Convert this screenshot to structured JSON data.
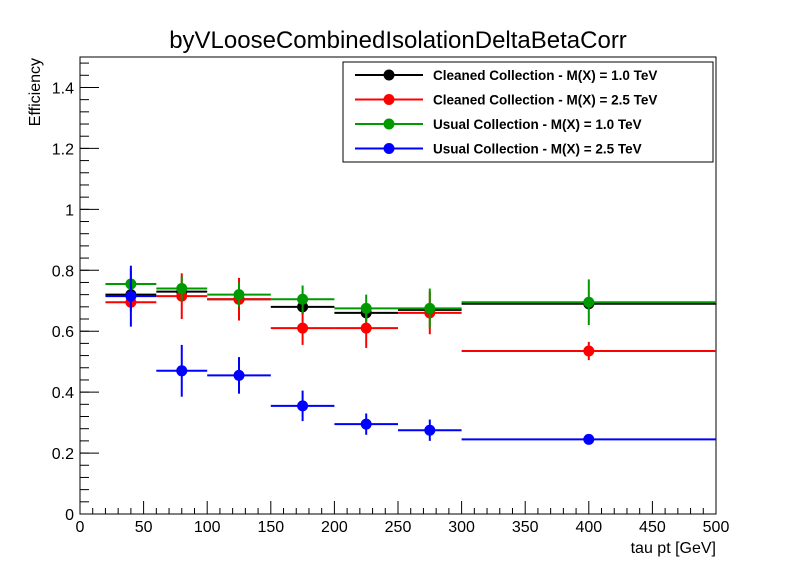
{
  "chart_data": {
    "type": "scatter",
    "title": "byVLooseCombinedIsolationDeltaBetaCorr",
    "xlabel": "tau pt [GeV]",
    "ylabel": "Efficiency",
    "xlim": [
      0,
      500
    ],
    "ylim": [
      0,
      1.5
    ],
    "x_ticks": [
      0,
      50,
      100,
      150,
      200,
      250,
      300,
      350,
      400,
      450,
      500
    ],
    "y_ticks": [
      0,
      0.2,
      0.4,
      0.6,
      0.8,
      1,
      1.2,
      1.4
    ],
    "x_tick_labels": [
      "0",
      "50",
      "100",
      "150",
      "200",
      "250",
      "300",
      "350",
      "400",
      "450",
      "500"
    ],
    "y_tick_labels": [
      "0",
      "0.2",
      "0.4",
      "0.6",
      "0.8",
      "1",
      "1.2",
      "1.4"
    ],
    "grid": false,
    "legend_position": "top-right",
    "series": [
      {
        "name": "Cleaned Collection - M(X) = 1.0 TeV",
        "color": "#000000",
        "points": [
          {
            "x": 40,
            "xlo": 20,
            "xhi": 60,
            "y": 0.72,
            "ylo": 0.69,
            "yhi": 0.75
          },
          {
            "x": 80,
            "xlo": 60,
            "xhi": 100,
            "y": 0.73,
            "ylo": 0.71,
            "yhi": 0.75
          },
          {
            "x": 125,
            "xlo": 100,
            "xhi": 150,
            "y": 0.705,
            "ylo": 0.685,
            "yhi": 0.725
          },
          {
            "x": 175,
            "xlo": 150,
            "xhi": 200,
            "y": 0.68,
            "ylo": 0.655,
            "yhi": 0.705
          },
          {
            "x": 225,
            "xlo": 200,
            "xhi": 250,
            "y": 0.66,
            "ylo": 0.64,
            "yhi": 0.68
          },
          {
            "x": 275,
            "xlo": 250,
            "xhi": 300,
            "y": 0.67,
            "ylo": 0.65,
            "yhi": 0.69
          },
          {
            "x": 400,
            "xlo": 300,
            "xhi": 500,
            "y": 0.69,
            "ylo": 0.67,
            "yhi": 0.71
          }
        ]
      },
      {
        "name": "Cleaned Collection - M(X) = 2.5 TeV",
        "color": "#ff0000",
        "points": [
          {
            "x": 40,
            "xlo": 20,
            "xhi": 60,
            "y": 0.695,
            "ylo": 0.665,
            "yhi": 0.725
          },
          {
            "x": 80,
            "xlo": 60,
            "xhi": 100,
            "y": 0.715,
            "ylo": 0.64,
            "yhi": 0.79
          },
          {
            "x": 125,
            "xlo": 100,
            "xhi": 150,
            "y": 0.705,
            "ylo": 0.635,
            "yhi": 0.775
          },
          {
            "x": 175,
            "xlo": 150,
            "xhi": 200,
            "y": 0.61,
            "ylo": 0.555,
            "yhi": 0.665
          },
          {
            "x": 225,
            "xlo": 200,
            "xhi": 250,
            "y": 0.61,
            "ylo": 0.545,
            "yhi": 0.675
          },
          {
            "x": 275,
            "xlo": 250,
            "xhi": 300,
            "y": 0.66,
            "ylo": 0.59,
            "yhi": 0.73
          },
          {
            "x": 400,
            "xlo": 300,
            "xhi": 500,
            "y": 0.535,
            "ylo": 0.505,
            "yhi": 0.565
          }
        ]
      },
      {
        "name": "Usual Collection - M(X) = 1.0 TeV",
        "color": "#009900",
        "points": [
          {
            "x": 40,
            "xlo": 20,
            "xhi": 60,
            "y": 0.755,
            "ylo": 0.705,
            "yhi": 0.805
          },
          {
            "x": 80,
            "xlo": 60,
            "xhi": 100,
            "y": 0.74,
            "ylo": 0.7,
            "yhi": 0.78
          },
          {
            "x": 125,
            "xlo": 100,
            "xhi": 150,
            "y": 0.72,
            "ylo": 0.68,
            "yhi": 0.76
          },
          {
            "x": 175,
            "xlo": 150,
            "xhi": 200,
            "y": 0.705,
            "ylo": 0.66,
            "yhi": 0.75
          },
          {
            "x": 225,
            "xlo": 200,
            "xhi": 250,
            "y": 0.675,
            "ylo": 0.63,
            "yhi": 0.72
          },
          {
            "x": 275,
            "xlo": 250,
            "xhi": 300,
            "y": 0.675,
            "ylo": 0.61,
            "yhi": 0.74
          },
          {
            "x": 400,
            "xlo": 300,
            "xhi": 500,
            "y": 0.695,
            "ylo": 0.62,
            "yhi": 0.77
          }
        ]
      },
      {
        "name": "Usual Collection - M(X) = 2.5 TeV",
        "color": "#0000ff",
        "points": [
          {
            "x": 40,
            "xlo": 20,
            "xhi": 60,
            "y": 0.715,
            "ylo": 0.615,
            "yhi": 0.815
          },
          {
            "x": 80,
            "xlo": 60,
            "xhi": 100,
            "y": 0.47,
            "ylo": 0.385,
            "yhi": 0.555
          },
          {
            "x": 125,
            "xlo": 100,
            "xhi": 150,
            "y": 0.455,
            "ylo": 0.395,
            "yhi": 0.515
          },
          {
            "x": 175,
            "xlo": 150,
            "xhi": 200,
            "y": 0.355,
            "ylo": 0.305,
            "yhi": 0.405
          },
          {
            "x": 225,
            "xlo": 200,
            "xhi": 250,
            "y": 0.295,
            "ylo": 0.26,
            "yhi": 0.33
          },
          {
            "x": 275,
            "xlo": 250,
            "xhi": 300,
            "y": 0.275,
            "ylo": 0.24,
            "yhi": 0.31
          },
          {
            "x": 400,
            "xlo": 300,
            "xhi": 500,
            "y": 0.245,
            "ylo": 0.235,
            "yhi": 0.255
          }
        ]
      }
    ]
  }
}
